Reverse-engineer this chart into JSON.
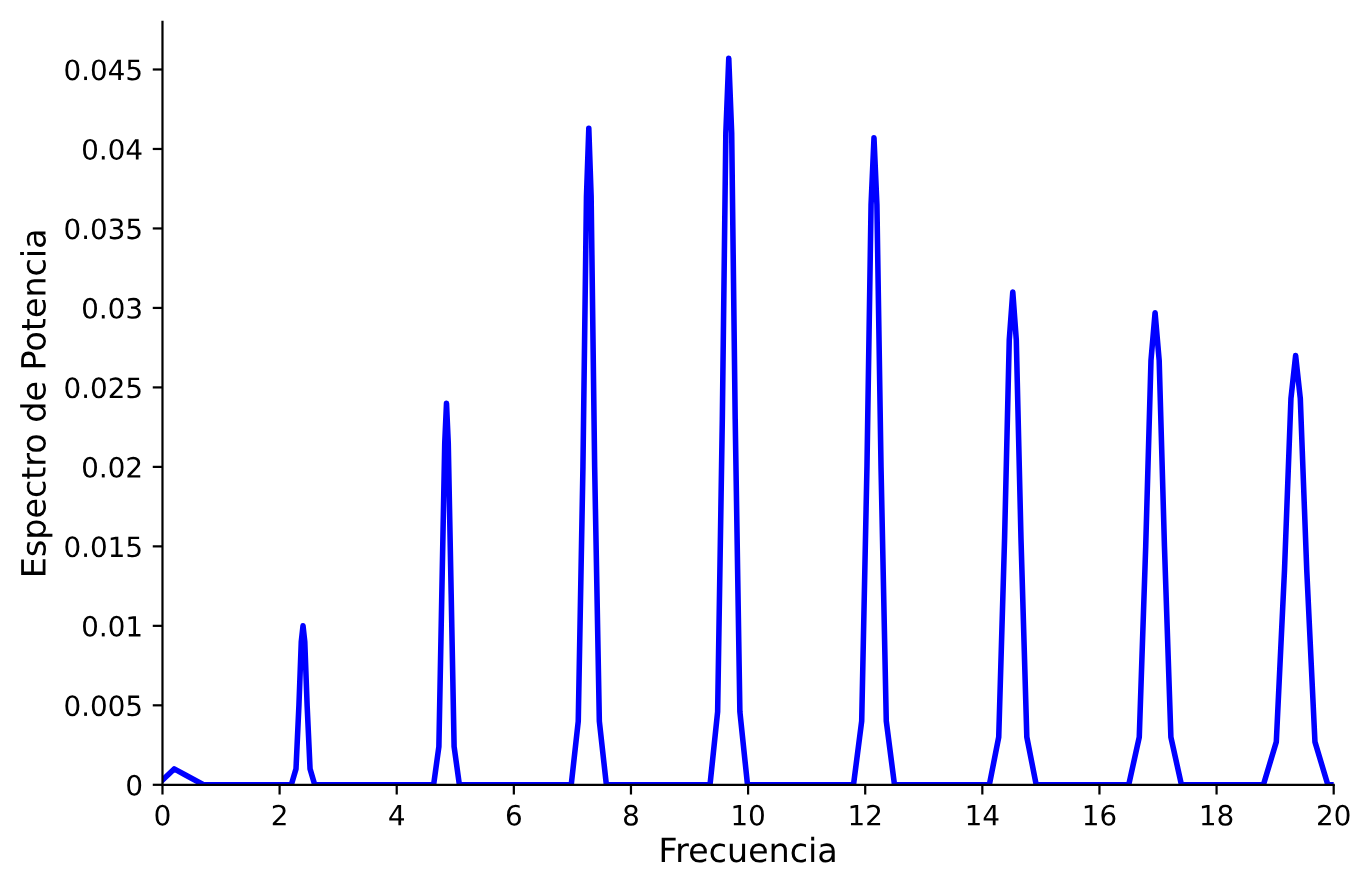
{
  "chart_data": {
    "type": "line",
    "xlabel": "Frecuencia",
    "ylabel": "Espectro de Potencia",
    "series": [
      {
        "color": "#0000ff",
        "x": [
          0,
          0.2,
          0.4,
          0.7,
          2.2,
          2.28,
          2.33,
          2.37,
          2.4,
          2.43,
          2.47,
          2.52,
          2.6,
          4.63,
          4.72,
          4.77,
          4.82,
          4.85,
          4.88,
          4.93,
          4.98,
          5.07,
          6.98,
          7.1,
          7.18,
          7.24,
          7.28,
          7.32,
          7.38,
          7.46,
          7.58,
          9.35,
          9.48,
          9.56,
          9.62,
          9.67,
          9.72,
          9.78,
          9.86,
          9.99,
          11.8,
          11.94,
          12.03,
          12.1,
          12.15,
          12.2,
          12.27,
          12.36,
          12.5,
          14.12,
          14.28,
          14.38,
          14.46,
          14.52,
          14.58,
          14.66,
          14.76,
          14.92,
          16.5,
          16.68,
          16.79,
          16.88,
          16.95,
          17.02,
          17.11,
          17.22,
          17.4,
          18.8,
          19.02,
          19.16,
          19.27,
          19.35,
          19.43,
          19.54,
          19.68,
          19.9,
          20
        ],
        "values": [
          0.0003,
          0.001,
          0.0006,
          0,
          0,
          0.001,
          0.005,
          0.009,
          0.01,
          0.009,
          0.005,
          0.001,
          0,
          0,
          0.0024,
          0.012,
          0.0215,
          0.024,
          0.0215,
          0.012,
          0.0024,
          0,
          0,
          0.004,
          0.02,
          0.037,
          0.0413,
          0.037,
          0.02,
          0.004,
          0,
          0,
          0.0046,
          0.023,
          0.041,
          0.0457,
          0.041,
          0.023,
          0.0046,
          0,
          0,
          0.004,
          0.02,
          0.0365,
          0.0407,
          0.0365,
          0.02,
          0.004,
          0,
          0,
          0.003,
          0.0155,
          0.028,
          0.031,
          0.028,
          0.0155,
          0.003,
          0,
          0,
          0.003,
          0.015,
          0.0267,
          0.0297,
          0.0267,
          0.015,
          0.003,
          0,
          0,
          0.0027,
          0.0135,
          0.0243,
          0.027,
          0.0243,
          0.0135,
          0.0027,
          0,
          0
        ]
      }
    ],
    "xlim": [
      0,
      20
    ],
    "xticks": [
      0,
      2,
      4,
      6,
      8,
      10,
      12,
      14,
      16,
      18,
      20
    ],
    "ylim": [
      0,
      0.048
    ],
    "yticks": [
      0,
      0.005,
      0.01,
      0.015,
      0.02,
      0.025,
      0.03,
      0.035,
      0.04,
      0.045
    ],
    "grid": false,
    "marker": "none",
    "line_style": "solid"
  }
}
